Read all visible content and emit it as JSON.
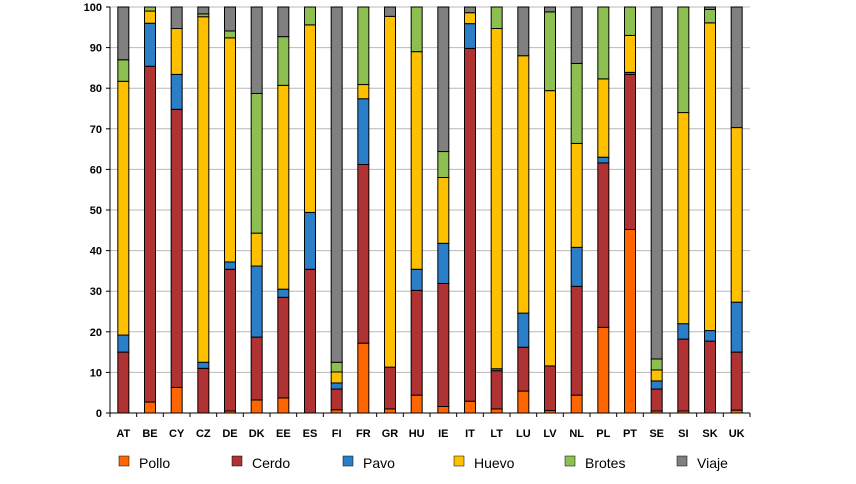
{
  "chart_data": {
    "type": "bar",
    "stacked": true,
    "categories": [
      "AT",
      "BE",
      "CY",
      "CZ",
      "DE",
      "DK",
      "EE",
      "ES",
      "FI",
      "FR",
      "GR",
      "HU",
      "IE",
      "IT",
      "LT",
      "LU",
      "LV",
      "NL",
      "PL",
      "PT",
      "SE",
      "SI",
      "SK",
      "UK"
    ],
    "ylim": [
      0,
      100
    ],
    "yticks": [
      0,
      10,
      20,
      30,
      40,
      50,
      60,
      70,
      80,
      90,
      100
    ],
    "grid": true,
    "legend_position": "bottom",
    "series": [
      {
        "name": "Pollo",
        "color": "#FF6600",
        "values": [
          0,
          2.7,
          6.3,
          0,
          0.5,
          3.2,
          3.7,
          0,
          0.8,
          17.2,
          1,
          4.4,
          1.6,
          2.9,
          1,
          5.4,
          0.6,
          4.4,
          21.1,
          45.2,
          0.5,
          0.5,
          0,
          0.7
        ]
      },
      {
        "name": "Cerdo",
        "color": "#B03232",
        "values": [
          15,
          82.7,
          68.5,
          11,
          34.9,
          15.5,
          24.8,
          35.4,
          5.1,
          44,
          10.3,
          25.8,
          30.3,
          86.9,
          9.4,
          10.8,
          11,
          26.8,
          40.5,
          38.2,
          5.4,
          17.7,
          17.7,
          14.3
        ]
      },
      {
        "name": "Pavo",
        "color": "#2A7FC8",
        "values": [
          4.2,
          10.6,
          8.6,
          1.5,
          1.8,
          17.5,
          2,
          14,
          1.5,
          16.2,
          0,
          5.2,
          9.9,
          6.1,
          0.5,
          8.4,
          0,
          9.6,
          1.4,
          0.5,
          2,
          3.8,
          2.6,
          12.3
        ]
      },
      {
        "name": "Huevo",
        "color": "#FFC000",
        "values": [
          62.5,
          3,
          11.3,
          85.1,
          55.2,
          8.1,
          50.2,
          46.2,
          2.7,
          3.5,
          86.4,
          53.6,
          16.2,
          2.7,
          83.8,
          63.4,
          67.8,
          25.6,
          19.3,
          9.1,
          2.7,
          52,
          75.8,
          43
        ]
      },
      {
        "name": "Brotes",
        "color": "#8DC050",
        "values": [
          5.3,
          1,
          0,
          0.7,
          1.7,
          34.4,
          12,
          4.4,
          2.4,
          19.1,
          0,
          11,
          6.4,
          0,
          5.3,
          0,
          19.4,
          19.7,
          17.7,
          7,
          2.7,
          26,
          3.3,
          0
        ]
      },
      {
        "name": "Viaje",
        "color": "#808080",
        "values": [
          13,
          0,
          5.3,
          1.7,
          5.9,
          21.3,
          7.3,
          0,
          87.5,
          0,
          2.3,
          0,
          35.6,
          1.4,
          0,
          12,
          1.2,
          13.9,
          0,
          0,
          86.7,
          0,
          0.6,
          29.7
        ]
      }
    ]
  }
}
